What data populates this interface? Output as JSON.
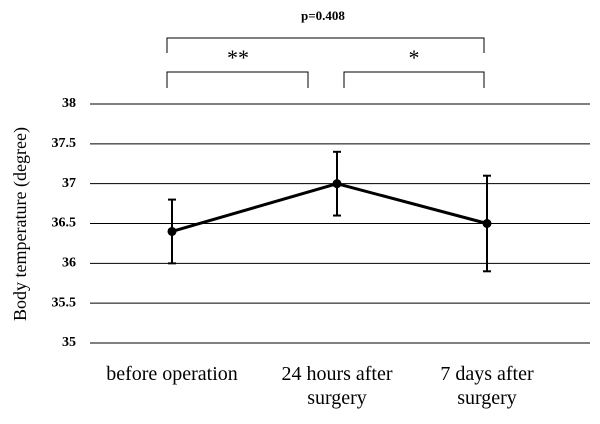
{
  "chart_data": {
    "type": "line",
    "y_label": "Body temperature (degree)",
    "categories": [
      "before operation",
      "24 hours after surgery",
      "7 days after surgery"
    ],
    "values": [
      36.4,
      37.0,
      36.5
    ],
    "errors": [
      0.4,
      0.4,
      0.6
    ],
    "color": "#000000",
    "ylim": [
      35,
      38
    ],
    "yticks": [
      35,
      35.5,
      36,
      36.5,
      37,
      37.5,
      38
    ],
    "grid": true,
    "annotations": [
      "p=0.408",
      "**",
      "*"
    ]
  }
}
